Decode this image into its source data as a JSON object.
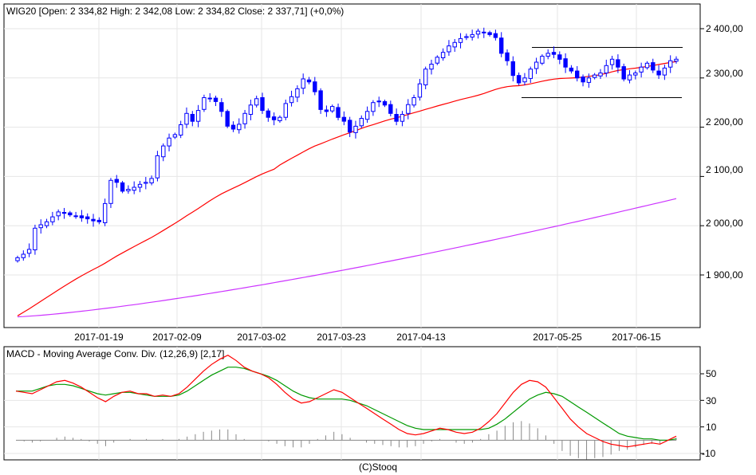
{
  "colors": {
    "up_candle": "#0000ff",
    "down_candle": "#0000ff",
    "ma_short": "#ff0000",
    "ma_long": "#cc33ff",
    "macd_line": "#ff0000",
    "signal_line": "#009900",
    "histogram": "#888888",
    "channel_lines": "#000000"
  },
  "main_panel": {
    "header": "WIG20 [Open: 2 334,82  High: 2 342,08  Low: 2 334,82  Close: 2 337,71] (+0,0%)",
    "y_ticks": [
      "2 400,00",
      "2 300,00",
      "2 200,00",
      "2 100,00",
      "2 000,00",
      "1 900,00"
    ],
    "x_ticks": [
      "2017-01-19",
      "2017-02-09",
      "2017-03-02",
      "2017-03-23",
      "2017-04-13",
      "2017-05-25",
      "2017-06-15"
    ]
  },
  "macd_panel": {
    "header": "MACD - Moving Average Conv. Div. (12,26,9) [2,17]",
    "y_ticks": [
      "50",
      "30",
      "10",
      "-10"
    ]
  },
  "footer": "(C)Stooq",
  "chart_data": [
    {
      "type": "candlestick",
      "title": "WIG20",
      "ylim": [
        1820,
        2420
      ],
      "x_start": "2016-12-30",
      "x_end": "2017-06-27",
      "channel": {
        "upper": 2362,
        "lower": 2260,
        "from": "2017-05-15",
        "to": "2017-06-27"
      },
      "closes": [
        1935,
        1942,
        1952,
        1995,
        2002,
        2008,
        2018,
        2028,
        2025,
        2022,
        2020,
        2016,
        2014,
        2010,
        2008,
        2045,
        2092,
        2088,
        2070,
        2074,
        2078,
        2084,
        2088,
        2096,
        2142,
        2162,
        2178,
        2185,
        2205,
        2228,
        2212,
        2234,
        2260,
        2258,
        2252,
        2232,
        2202,
        2196,
        2206,
        2228,
        2245,
        2258,
        2234,
        2220,
        2215,
        2220,
        2248,
        2262,
        2278,
        2298,
        2292,
        2272,
        2236,
        2232,
        2242,
        2220,
        2212,
        2190,
        2202,
        2218,
        2232,
        2250,
        2253,
        2245,
        2228,
        2212,
        2226,
        2246,
        2260,
        2288,
        2318,
        2328,
        2342,
        2352,
        2365,
        2372,
        2380,
        2384,
        2388,
        2395,
        2392,
        2388,
        2382,
        2350,
        2335,
        2305,
        2290,
        2300,
        2318,
        2332,
        2344,
        2350,
        2348,
        2338,
        2322,
        2314,
        2300,
        2292,
        2300,
        2306,
        2310,
        2325,
        2338,
        2322,
        2298,
        2306,
        2310,
        2322,
        2330,
        2316,
        2306,
        2320,
        2335,
        2338
      ],
      "ma_short_start": 1817,
      "ma_short_end": 2325,
      "ma_long_start": 1815,
      "ma_long_end": 2055
    },
    {
      "type": "line",
      "title": "MACD - Moving Average Conv. Div. (12,26,9) [2,17]",
      "ylim": [
        -13,
        68
      ],
      "series": [
        {
          "values": [
            37,
            36,
            35,
            38,
            41,
            44,
            45,
            43,
            40,
            36,
            32,
            29,
            33,
            36,
            37,
            35,
            35,
            33,
            34,
            33,
            35,
            40,
            46,
            52,
            57,
            61,
            64,
            60,
            55,
            52,
            50,
            47,
            42,
            36,
            31,
            28,
            29,
            32,
            35,
            38,
            36,
            32,
            28,
            24,
            20,
            16,
            12,
            8,
            5,
            4,
            5,
            7,
            9,
            8,
            6,
            5,
            6,
            9,
            14,
            20,
            28,
            36,
            42,
            45,
            44,
            40,
            32,
            24,
            16,
            10,
            5,
            2,
            -1,
            -3,
            -4,
            -5,
            -4,
            -3,
            -2,
            -3,
            0,
            3
          ]
        },
        {
          "values": [
            37,
            37,
            37,
            39,
            41,
            42,
            42,
            41,
            39,
            37,
            35,
            34,
            35,
            36,
            36,
            35,
            34,
            33,
            33,
            33,
            34,
            37,
            41,
            45,
            49,
            52,
            55,
            55,
            54,
            52,
            50,
            48,
            45,
            41,
            37,
            34,
            32,
            31,
            31,
            31,
            31,
            30,
            28,
            26,
            23,
            20,
            17,
            14,
            11,
            9,
            8,
            8,
            8,
            8,
            8,
            8,
            8,
            8,
            9,
            12,
            16,
            21,
            26,
            31,
            34,
            36,
            35,
            33,
            29,
            25,
            21,
            17,
            13,
            9,
            5,
            3,
            2,
            1,
            1,
            0,
            0,
            1
          ]
        },
        {
          "values": [
            0,
            -1,
            -2,
            -1,
            0,
            2,
            3,
            2,
            1,
            -1,
            -3,
            -5,
            -2,
            0,
            1,
            0,
            1,
            0,
            1,
            0,
            1,
            3,
            5,
            7,
            8,
            9,
            9,
            5,
            1,
            0,
            0,
            -1,
            -3,
            -5,
            -6,
            -6,
            -3,
            1,
            4,
            7,
            5,
            2,
            0,
            -2,
            -3,
            -4,
            -5,
            -6,
            -6,
            -5,
            -3,
            -1,
            1,
            0,
            -2,
            -3,
            -2,
            1,
            5,
            8,
            12,
            15,
            16,
            14,
            10,
            4,
            -3,
            -9,
            -13,
            -15,
            -16,
            -15,
            -14,
            -12,
            -9,
            -8,
            -6,
            -4,
            -3,
            -3,
            0,
            2
          ]
        }
      ]
    }
  ]
}
